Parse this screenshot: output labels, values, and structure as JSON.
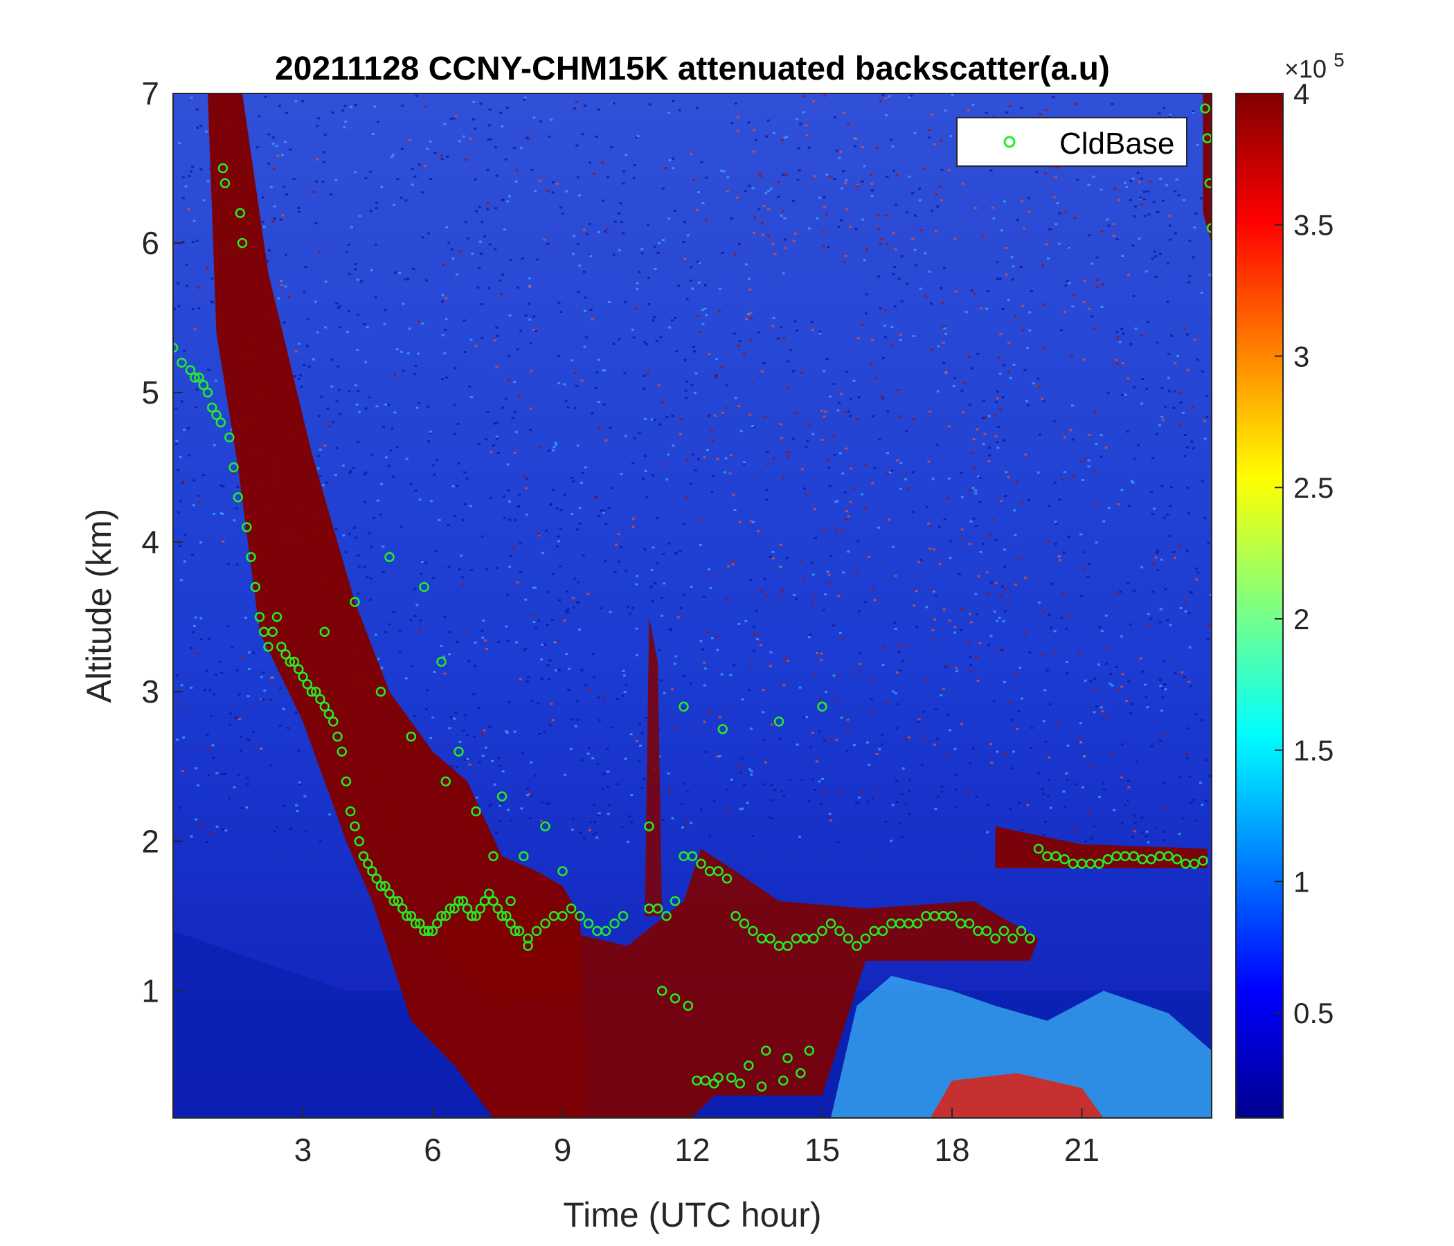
{
  "chart_data": {
    "type": "heatmap",
    "title": "20211128 CCNY-CHM15K attenuated backscatter(a.u)",
    "xlabel": "Time (UTC hour)",
    "ylabel": "Altitude (km)",
    "xlim": [
      0,
      24
    ],
    "ylim": [
      0.15,
      7
    ],
    "xticks": [
      3,
      6,
      9,
      12,
      15,
      18,
      21
    ],
    "yticks": [
      1,
      2,
      3,
      4,
      5,
      6,
      7
    ],
    "colorbar": {
      "clim": [
        0.1,
        4
      ],
      "ticks": [
        0.5,
        1,
        1.5,
        2,
        2.5,
        3,
        3.5,
        4
      ],
      "exponent_label": "×10",
      "exponent": "5",
      "colormap": "jet",
      "colors": [
        "#00008f",
        "#0000ff",
        "#0080ff",
        "#00ffff",
        "#80ff80",
        "#ffff00",
        "#ff8000",
        "#ff0000",
        "#800000"
      ]
    },
    "legend": {
      "placement": "top-right",
      "entries": [
        "CldBase"
      ]
    },
    "series": [
      {
        "name": "CldBase",
        "marker": "open-circle",
        "color": "#22ee22",
        "x": [
          0.0,
          0.2,
          0.4,
          0.5,
          0.6,
          0.7,
          0.8,
          0.9,
          1.0,
          1.1,
          1.15,
          1.2,
          1.3,
          1.4,
          1.5,
          1.55,
          1.6,
          1.7,
          1.8,
          1.9,
          2.0,
          2.1,
          2.2,
          2.3,
          2.4,
          2.5,
          2.6,
          2.7,
          2.8,
          2.9,
          3.0,
          3.1,
          3.2,
          3.3,
          3.4,
          3.5,
          3.6,
          3.7,
          3.8,
          3.9,
          4.0,
          4.1,
          4.2,
          4.3,
          4.4,
          4.5,
          4.6,
          4.7,
          4.8,
          4.9,
          5.0,
          5.1,
          5.2,
          5.3,
          5.4,
          5.5,
          5.6,
          5.7,
          5.8,
          5.9,
          6.0,
          6.1,
          6.2,
          6.3,
          6.4,
          6.5,
          6.6,
          6.7,
          6.8,
          6.9,
          7.0,
          7.1,
          7.2,
          7.3,
          7.4,
          7.5,
          7.6,
          7.7,
          7.8,
          7.9,
          8.0,
          8.2,
          8.4,
          8.6,
          8.8,
          9.0,
          9.2,
          9.4,
          9.6,
          9.8,
          10.0,
          10.2,
          10.4,
          11.0,
          11.2,
          11.4,
          11.6,
          11.8,
          12.0,
          12.2,
          12.4,
          12.6,
          12.8,
          13.0,
          13.2,
          13.4,
          13.6,
          13.8,
          14.0,
          14.2,
          14.4,
          14.6,
          14.8,
          15.0,
          15.2,
          15.4,
          15.6,
          15.8,
          16.0,
          16.2,
          16.4,
          16.6,
          16.8,
          17.0,
          17.2,
          17.4,
          17.6,
          17.8,
          18.0,
          18.2,
          18.4,
          18.6,
          18.8,
          19.0,
          19.2,
          19.4,
          19.6,
          19.8,
          20.0,
          20.2,
          20.4,
          20.6,
          20.8,
          21.0,
          21.2,
          21.4,
          21.6,
          21.8,
          22.0,
          22.2,
          22.4,
          22.6,
          22.8,
          23.0,
          23.2,
          23.4,
          23.6,
          23.8,
          23.85,
          23.9,
          23.95,
          24.0,
          3.5,
          4.2,
          5.0,
          5.8,
          6.2,
          6.6,
          7.0,
          7.4,
          7.8,
          8.2,
          8.6,
          9.0,
          4.8,
          5.5,
          6.3,
          6.9,
          7.6,
          8.1,
          11.0,
          11.3,
          11.6,
          11.9,
          12.3,
          12.6,
          13.1,
          13.6,
          14.1,
          14.5,
          12.1,
          12.5,
          12.9,
          13.3,
          13.7,
          14.2,
          14.7,
          11.8,
          12.7,
          14.0,
          15.0
        ],
        "y": [
          5.3,
          5.2,
          5.15,
          5.1,
          5.1,
          5.05,
          5.0,
          4.9,
          4.85,
          4.8,
          6.5,
          6.4,
          4.7,
          4.5,
          4.3,
          6.2,
          6.0,
          4.1,
          3.9,
          3.7,
          3.5,
          3.4,
          3.3,
          3.4,
          3.5,
          3.3,
          3.25,
          3.2,
          3.2,
          3.15,
          3.1,
          3.05,
          3.0,
          3.0,
          2.95,
          2.9,
          2.85,
          2.8,
          2.7,
          2.6,
          2.4,
          2.2,
          2.1,
          2.0,
          1.9,
          1.85,
          1.8,
          1.75,
          1.7,
          1.7,
          1.65,
          1.6,
          1.6,
          1.55,
          1.5,
          1.5,
          1.45,
          1.45,
          1.4,
          1.4,
          1.4,
          1.45,
          1.5,
          1.5,
          1.55,
          1.55,
          1.6,
          1.6,
          1.55,
          1.5,
          1.5,
          1.55,
          1.6,
          1.65,
          1.6,
          1.55,
          1.5,
          1.5,
          1.45,
          1.4,
          1.4,
          1.35,
          1.4,
          1.45,
          1.5,
          1.5,
          1.55,
          1.5,
          1.45,
          1.4,
          1.4,
          1.45,
          1.5,
          1.55,
          1.55,
          1.5,
          1.6,
          1.9,
          1.9,
          1.85,
          1.8,
          1.8,
          1.75,
          1.5,
          1.45,
          1.4,
          1.35,
          1.35,
          1.3,
          1.3,
          1.35,
          1.35,
          1.35,
          1.4,
          1.45,
          1.4,
          1.35,
          1.3,
          1.35,
          1.4,
          1.4,
          1.45,
          1.45,
          1.45,
          1.45,
          1.5,
          1.5,
          1.5,
          1.5,
          1.45,
          1.45,
          1.4,
          1.4,
          1.35,
          1.4,
          1.35,
          1.4,
          1.35,
          1.95,
          1.9,
          1.9,
          1.88,
          1.85,
          1.85,
          1.85,
          1.85,
          1.88,
          1.9,
          1.9,
          1.9,
          1.88,
          1.88,
          1.9,
          1.9,
          1.88,
          1.85,
          1.85,
          1.87,
          6.9,
          6.7,
          6.4,
          6.1,
          3.4,
          3.6,
          3.9,
          3.7,
          3.2,
          2.6,
          2.2,
          1.9,
          1.6,
          1.3,
          2.1,
          1.8,
          3.0,
          2.7,
          2.4,
          1.5,
          2.3,
          1.9,
          2.1,
          1.0,
          0.95,
          0.9,
          0.4,
          0.42,
          0.38,
          0.36,
          0.4,
          0.45,
          0.4,
          0.38,
          0.42,
          0.5,
          0.6,
          0.55,
          0.6,
          2.9,
          2.75,
          2.8,
          2.9
        ]
      }
    ]
  }
}
